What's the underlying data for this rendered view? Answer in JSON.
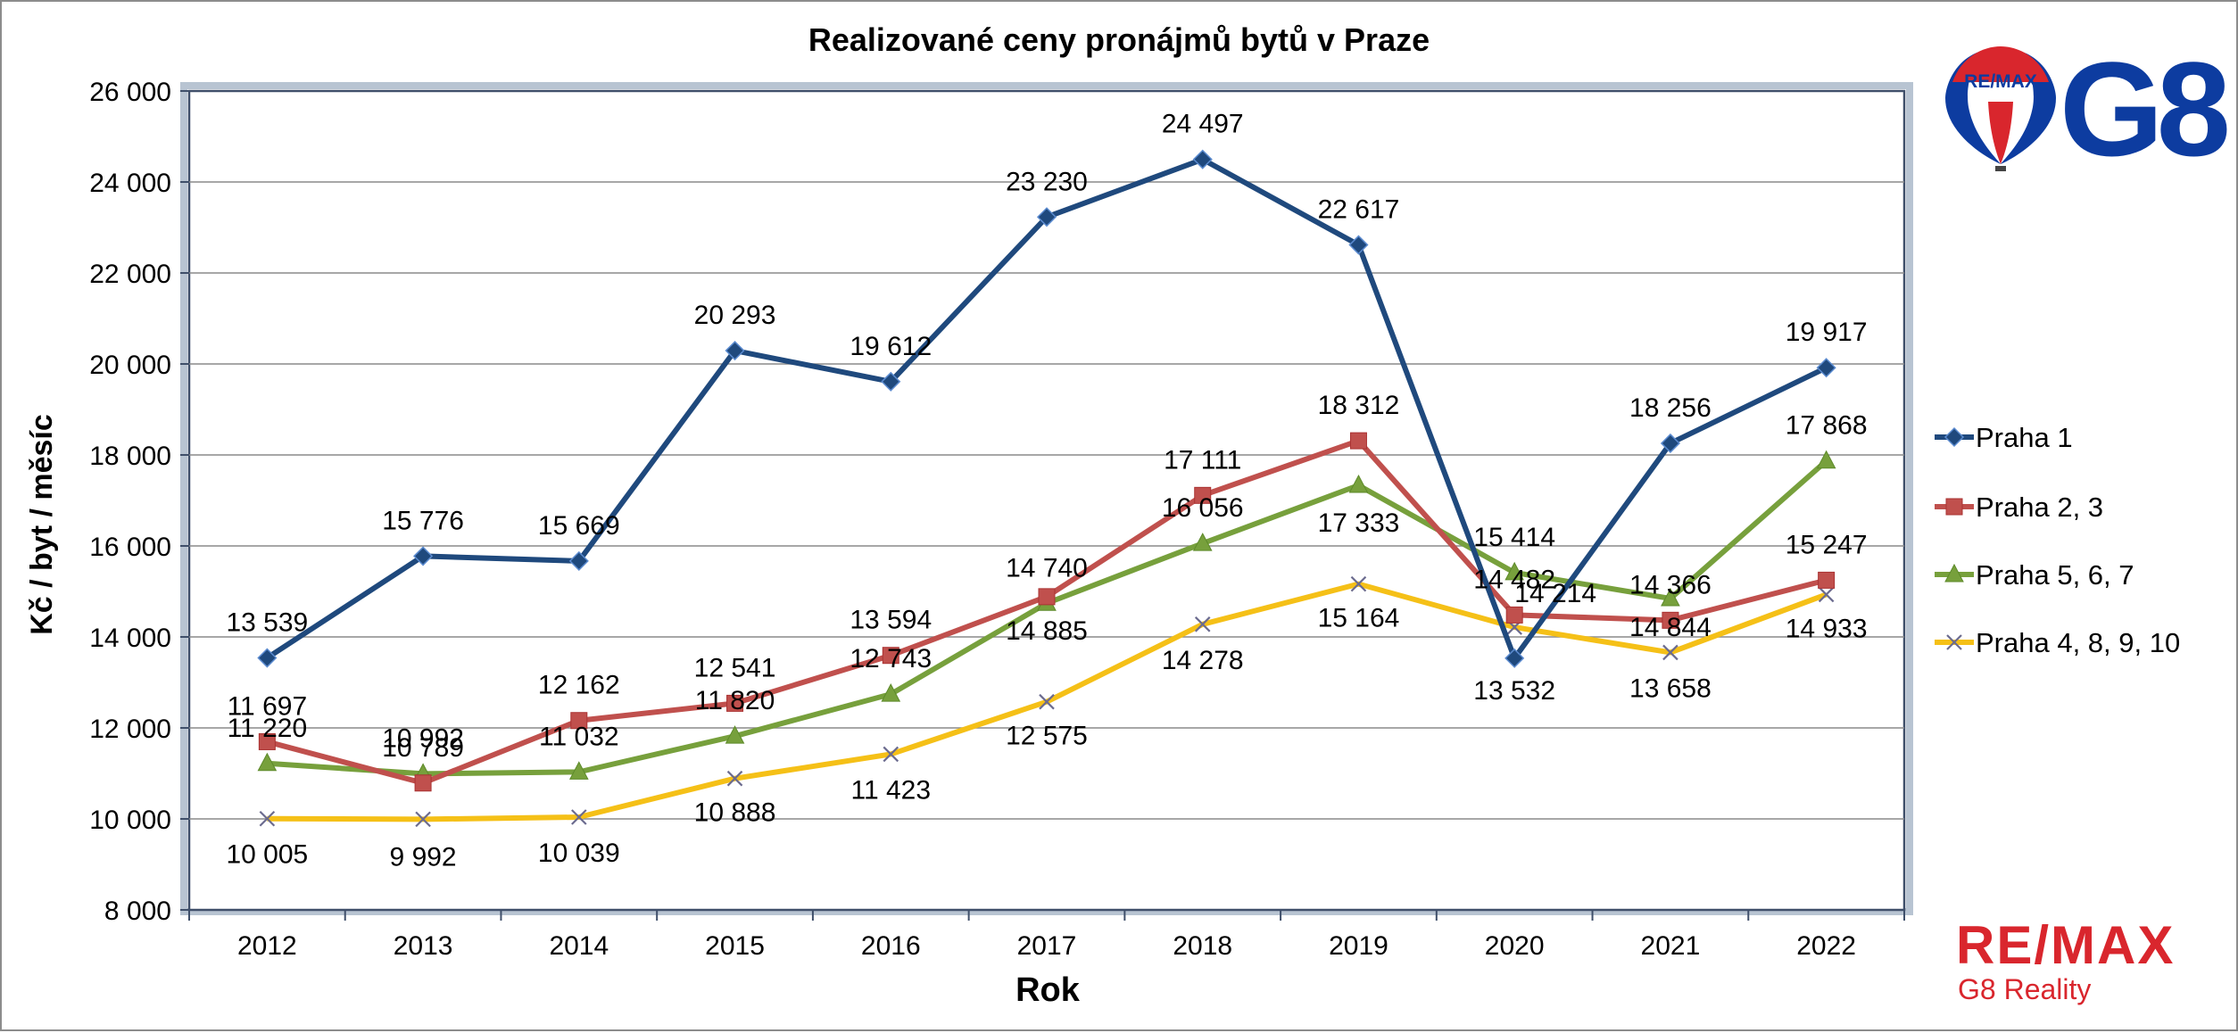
{
  "chart_data": {
    "type": "line",
    "title": "Realizované ceny pronájmů bytů v Praze",
    "xlabel": "Rok",
    "ylabel": "Kč / byt / měsíc",
    "categories": [
      "2012",
      "2013",
      "2014",
      "2015",
      "2016",
      "2017",
      "2018",
      "2019",
      "2020",
      "2021",
      "2022"
    ],
    "ylim": [
      8000,
      26000
    ],
    "yticks": [
      8000,
      10000,
      12000,
      14000,
      16000,
      18000,
      20000,
      22000,
      24000,
      26000
    ],
    "ytick_labels": [
      "8 000",
      "10 000",
      "12 000",
      "14 000",
      "16 000",
      "18 000",
      "20 000",
      "22 000",
      "24 000",
      "26 000"
    ],
    "grid": true,
    "legend_position": "right",
    "series": [
      {
        "name": "Praha 1",
        "color": "#1f497d",
        "marker": "diamond",
        "values": [
          13539,
          15776,
          15669,
          20293,
          19612,
          23230,
          24497,
          22617,
          13532,
          18256,
          19917
        ],
        "labels": [
          "13 539",
          "15 776",
          "15 669",
          "20 293",
          "19 612",
          "23 230",
          "24 497",
          "22 617",
          "13 532",
          "18 256",
          "19 917"
        ]
      },
      {
        "name": "Praha 2, 3",
        "color": "#c0504d",
        "marker": "square",
        "values": [
          11697,
          10789,
          12162,
          12541,
          13594,
          14885,
          17111,
          18312,
          14482,
          14366,
          15247
        ],
        "labels": [
          "11 697",
          "10 789",
          "12 162",
          "12 541",
          "13 594",
          "14 885",
          "17 111",
          "18 312",
          "14 482",
          "14 366",
          "15 247"
        ]
      },
      {
        "name": "Praha 5, 6, 7",
        "color": "#77a03c",
        "marker": "triangle",
        "values": [
          11220,
          10992,
          11032,
          11820,
          12743,
          14740,
          16056,
          17333,
          15414,
          14844,
          17868
        ],
        "labels": [
          "11 220",
          "10 992",
          "11 032",
          "11 820",
          "12 743",
          "14 740",
          "16 056",
          "17 333",
          "15 414",
          "14 844",
          "17 868"
        ]
      },
      {
        "name": "Praha 4, 8, 9, 10",
        "color": "#f5c017",
        "marker": "x",
        "values": [
          10005,
          9992,
          10039,
          10888,
          11423,
          12575,
          14278,
          15164,
          14214,
          13658,
          14933
        ],
        "labels": [
          "10 005",
          "9 992",
          "10 039",
          "10 888",
          "11 423",
          "12 575",
          "14 278",
          "15 164",
          "14 214",
          "13 658",
          "14 933"
        ]
      }
    ]
  },
  "logos": {
    "balloon_text": "RE/MAX",
    "g8_text": "G8",
    "bottom_brand": "RE/MAX",
    "bottom_sub": "G8 Reality",
    "blue": "#0d3ca0",
    "red": "#d9262d"
  }
}
